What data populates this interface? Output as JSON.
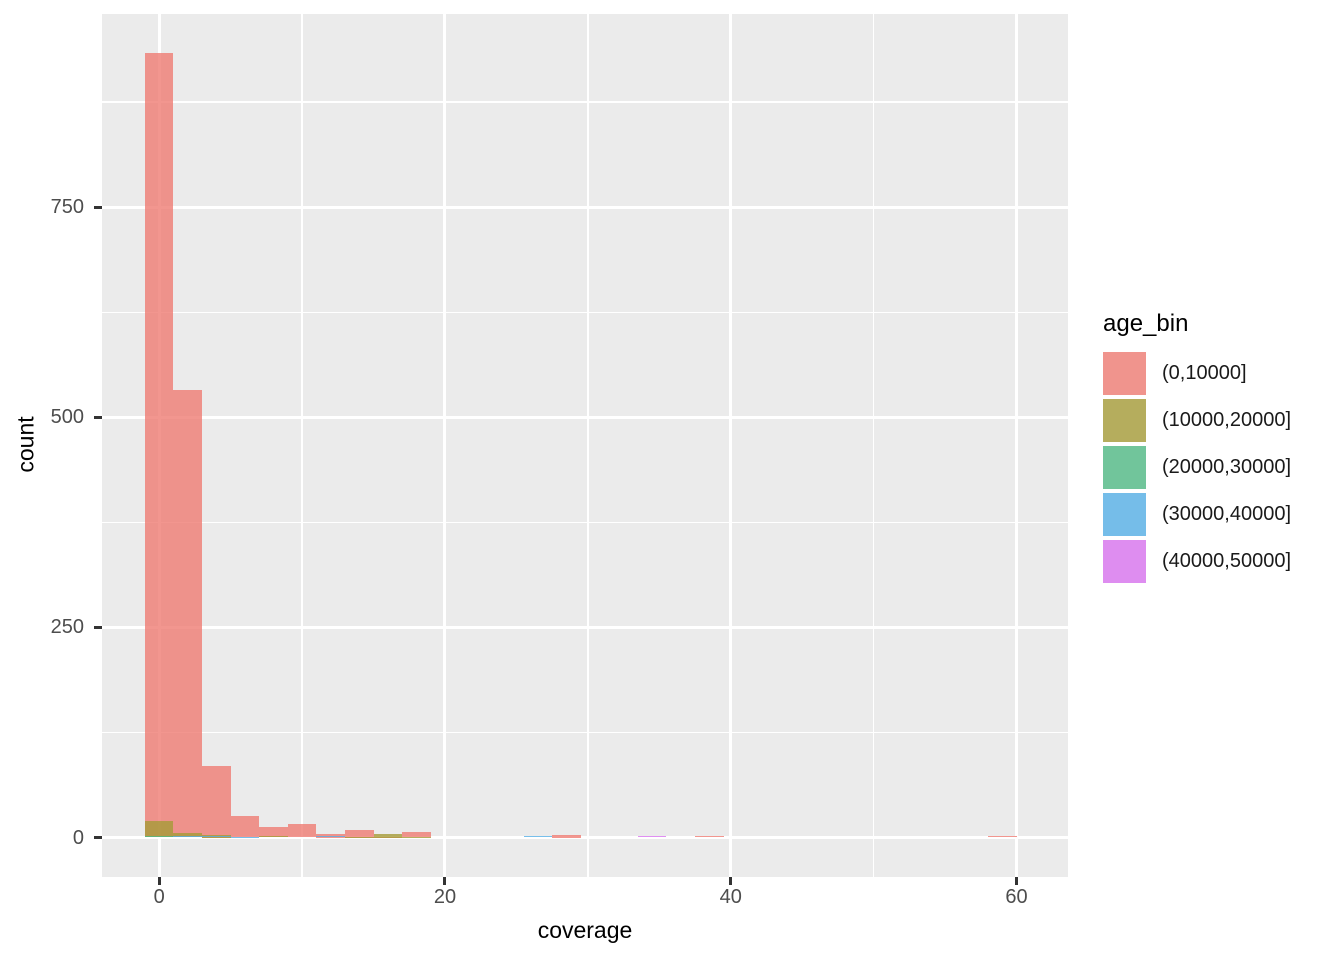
{
  "chart_data": {
    "type": "histogram",
    "title": "",
    "xlabel": "coverage",
    "ylabel": "count",
    "legend_title": "age_bin",
    "position": "identity",
    "fill_alpha": 0.8,
    "binwidth": 2,
    "xlim": [
      -4,
      63.6
    ],
    "ylim": [
      -47,
      980
    ],
    "x_major_ticks": [
      0,
      20,
      40,
      60
    ],
    "x_minor_gridlines": [
      10,
      30,
      50
    ],
    "y_major_ticks": [
      0,
      250,
      500,
      750
    ],
    "y_minor_gridlines": [
      125,
      375,
      625,
      875
    ],
    "panel_bg": "#EBEBEB",
    "grid_color": "#FFFFFF",
    "tick_label_color": "#4D4D4D",
    "legend_key_bg": "#F2F2F2",
    "series": [
      {
        "name": "(0,10000]",
        "color": "#EF7C73",
        "bins": [
          {
            "x": 0,
            "count": 933
          },
          {
            "x": 2,
            "count": 533
          },
          {
            "x": 4,
            "count": 85
          },
          {
            "x": 6,
            "count": 25
          },
          {
            "x": 8,
            "count": 12
          },
          {
            "x": 10,
            "count": 16
          },
          {
            "x": 12,
            "count": 4
          },
          {
            "x": 14,
            "count": 9
          },
          {
            "x": 16,
            "count": 1
          },
          {
            "x": 18,
            "count": 6
          },
          {
            "x": 28.5,
            "count": 3
          },
          {
            "x": 38.5,
            "count": 2
          },
          {
            "x": 59,
            "count": 2
          }
        ]
      },
      {
        "name": "(10000,20000]",
        "color": "#A59B37",
        "bins": [
          {
            "x": 0,
            "count": 20
          },
          {
            "x": 2,
            "count": 5
          },
          {
            "x": 4,
            "count": 3
          },
          {
            "x": 8,
            "count": 2
          },
          {
            "x": 14,
            "count": 1
          },
          {
            "x": 16,
            "count": 4
          },
          {
            "x": 18,
            "count": 1
          }
        ]
      },
      {
        "name": "(20000,30000]",
        "color": "#50B984",
        "bins": [
          {
            "x": 0,
            "count": 2
          }
        ]
      },
      {
        "name": "(30000,40000]",
        "color": "#55AFE6",
        "bins": [
          {
            "x": 2,
            "count": 2
          },
          {
            "x": 4,
            "count": 2
          },
          {
            "x": 6,
            "count": 1
          },
          {
            "x": 12,
            "count": 2
          },
          {
            "x": 26.5,
            "count": 2
          }
        ]
      },
      {
        "name": "(40000,50000]",
        "color": "#D873EF",
        "bins": [
          {
            "x": 34.5,
            "count": 2
          }
        ]
      }
    ]
  }
}
